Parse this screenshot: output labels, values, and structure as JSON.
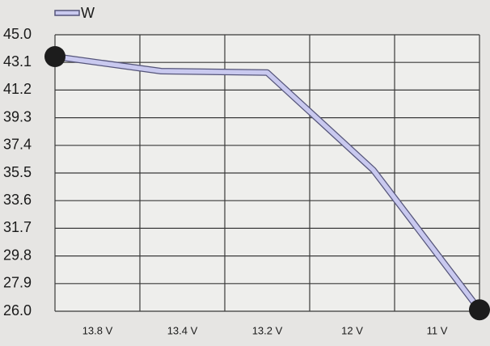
{
  "chart_data": {
    "type": "line",
    "categories": [
      "13.8 V",
      "13.4 V",
      "13.2 V",
      "12 V",
      "11 V"
    ],
    "series": [
      {
        "name": "W",
        "color": "#c9c9ef",
        "values": [
          43.5,
          42.5,
          42.4,
          35.7,
          26.1
        ]
      }
    ],
    "ylim": [
      26.0,
      45.0
    ],
    "yticks": [
      {
        "value": 26.0,
        "label": "26.0"
      },
      27.9,
      29.8,
      31.7,
      33.6,
      35.5,
      37.4,
      39.3,
      41.2,
      43.1,
      {
        "value": 45.0,
        "label": "45.0"
      }
    ],
    "grid": true
  }
}
